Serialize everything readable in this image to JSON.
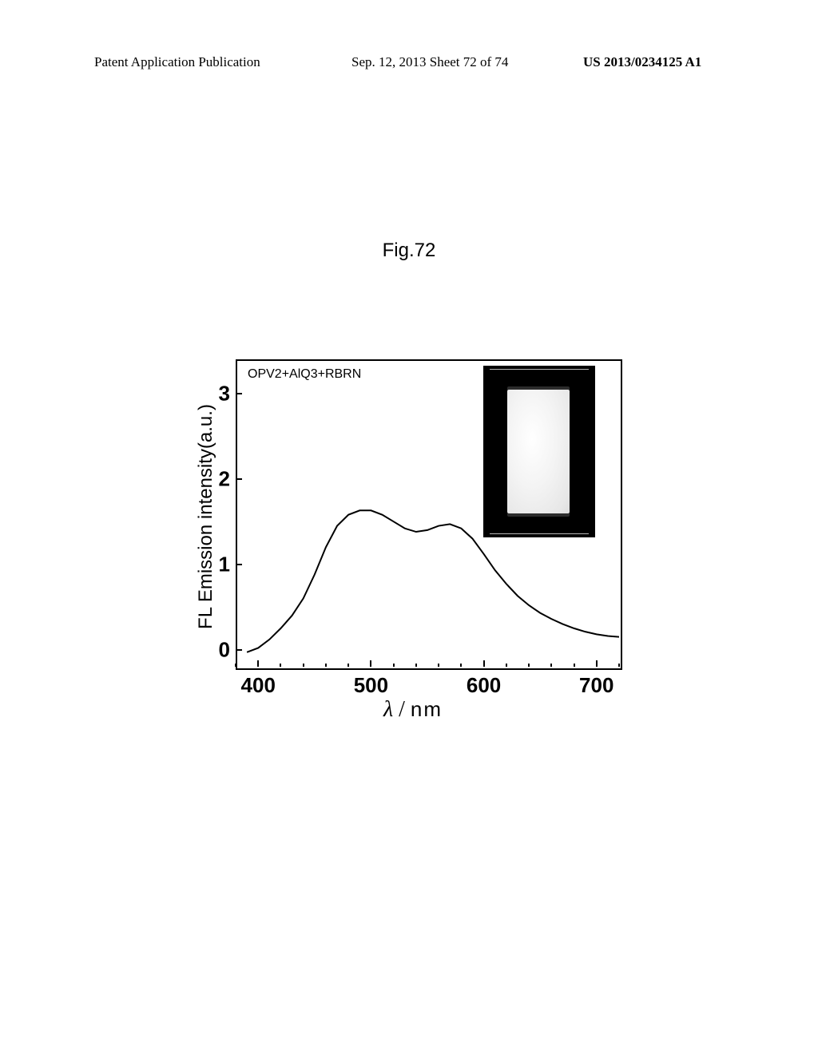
{
  "header": {
    "left": "Patent Application Publication",
    "center": "Sep. 12, 2013  Sheet 72 of 74",
    "right": "US 2013/0234125 A1"
  },
  "figure_label": "Fig.72",
  "chart": {
    "type": "line",
    "legend": "OPV2+AlQ3+RBRN",
    "x_label_symbol": "λ",
    "x_label_sep": " / ",
    "x_label_unit": "nm",
    "y_label": "FL Emission intensity(a.u.)",
    "xlim": [
      380,
      720
    ],
    "ylim": [
      -0.2,
      3.4
    ],
    "x_ticks": [
      400,
      500,
      600,
      700
    ],
    "y_ticks": [
      0,
      1,
      2,
      3
    ],
    "x_minor_step": 20,
    "line_color": "#000000",
    "line_width": 2,
    "background_color": "#ffffff",
    "border_color": "#000000",
    "data": {
      "x": [
        390,
        400,
        410,
        420,
        430,
        440,
        450,
        460,
        470,
        480,
        490,
        500,
        510,
        520,
        530,
        540,
        550,
        560,
        570,
        580,
        590,
        600,
        610,
        620,
        630,
        640,
        650,
        660,
        670,
        680,
        690,
        700,
        710,
        720
      ],
      "y": [
        -0.03,
        0.02,
        0.12,
        0.25,
        0.4,
        0.6,
        0.88,
        1.2,
        1.45,
        1.58,
        1.63,
        1.63,
        1.58,
        1.5,
        1.42,
        1.38,
        1.4,
        1.45,
        1.47,
        1.42,
        1.3,
        1.12,
        0.93,
        0.77,
        0.63,
        0.52,
        0.43,
        0.36,
        0.3,
        0.25,
        0.21,
        0.18,
        0.16,
        0.15
      ]
    }
  },
  "inset": {
    "background_color": "#000000",
    "cuvette_color": "#f4f4f4"
  }
}
